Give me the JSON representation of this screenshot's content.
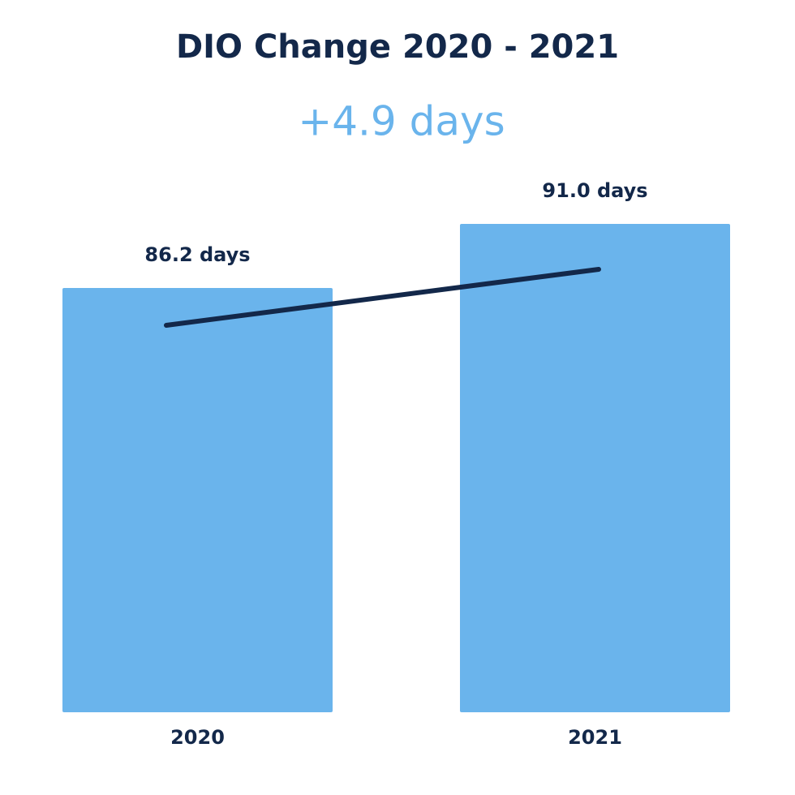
{
  "chart_data": {
    "type": "bar",
    "title": "DIO Change 2020 - 2021",
    "subtitle": "+4.9 days",
    "categories": [
      "2020",
      "2021"
    ],
    "values": [
      86.2,
      91.0
    ],
    "value_labels": [
      "86.2 days",
      "91.0 days"
    ],
    "color": "#6ab4ec",
    "ylim": [
      54.4,
      91.0
    ]
  }
}
